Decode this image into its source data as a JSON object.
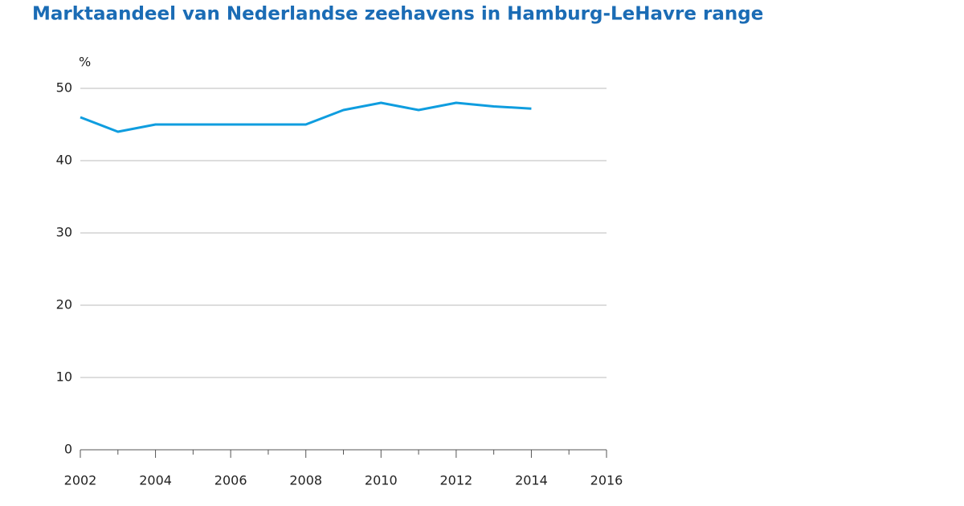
{
  "chart_data": {
    "type": "line",
    "title": "Marktaandeel van Nederlandse zeehavens in Hamburg-LeHavre range",
    "y_label": "%",
    "x": [
      2002,
      2003,
      2004,
      2005,
      2006,
      2007,
      2008,
      2009,
      2010,
      2011,
      2012,
      2013,
      2014
    ],
    "series": [
      {
        "name": "Marktaandeel",
        "color": "#0f9ddf",
        "values": [
          46,
          44,
          45,
          45,
          45,
          45,
          45,
          47,
          48,
          47,
          48,
          47.5,
          47.2
        ]
      }
    ],
    "xlim": [
      2002,
      2016
    ],
    "xticks": [
      2002,
      2004,
      2006,
      2008,
      2010,
      2012,
      2014,
      2016
    ],
    "ylim": [
      0,
      50
    ],
    "yticks": [
      0,
      10,
      20,
      30,
      40,
      50
    ],
    "grid": true
  }
}
